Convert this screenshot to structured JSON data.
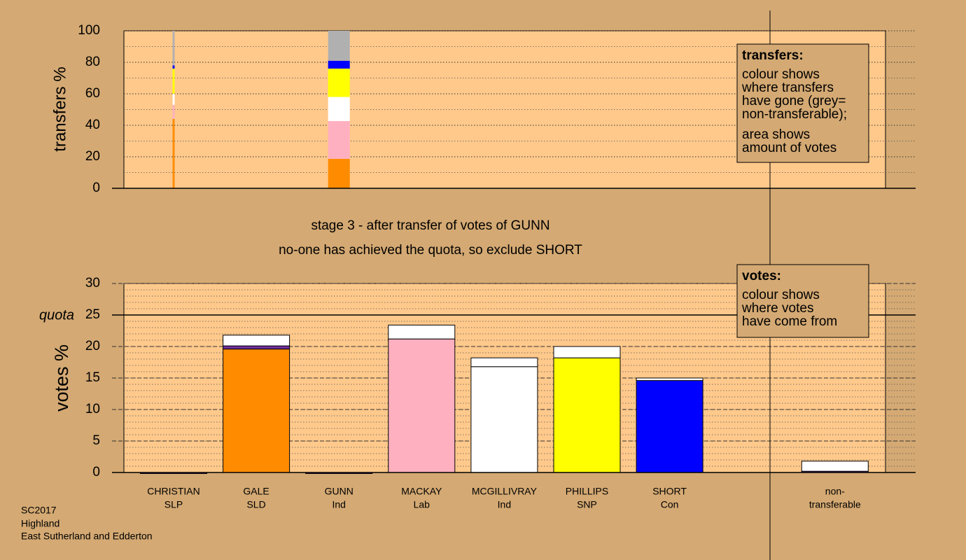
{
  "chart_data": [
    {
      "type": "stacked-bar",
      "y_label": "transfers %",
      "ylim": [
        0,
        100
      ],
      "yticks": [
        0,
        20,
        40,
        60,
        80,
        100
      ],
      "grid": "dotted",
      "minor_grid_step": 10,
      "stacks": [
        {
          "width": 0.3,
          "segments": [
            {
              "value": 44,
              "color": "#ff8c00"
            },
            {
              "value": 9,
              "color": "#ffb0c0"
            },
            {
              "value": 7,
              "color": "#ffffff"
            },
            {
              "value": 16,
              "color": "#ffff00"
            },
            {
              "value": 2,
              "color": "#0000ff"
            },
            {
              "value": 22,
              "color": "#b0b0b0"
            }
          ]
        },
        null,
        {
          "width": 3.2,
          "segments": [
            {
              "value": 18.7,
              "color": "#ff8c00"
            },
            {
              "value": 24,
              "color": "#ffb0c0"
            },
            {
              "value": 15.3,
              "color": "#ffffff"
            },
            {
              "value": 18,
              "color": "#ffff00"
            },
            {
              "value": 5,
              "color": "#0000ff"
            },
            {
              "value": 19,
              "color": "#b0b0b0"
            }
          ]
        },
        null,
        null,
        null,
        null,
        null,
        null
      ]
    },
    {
      "type": "stacked-bar",
      "title": "stage 3 - after transfer of votes of GUNN",
      "subtitle": "no-one has achieved the quota, so exclude SHORT",
      "y_label": "votes %",
      "ylim": [
        0,
        30
      ],
      "yticks": [
        0,
        5,
        10,
        15,
        20,
        25,
        30
      ],
      "grid": "dashed",
      "minor_grid_step": 1,
      "quota": {
        "label": "quota",
        "value": 25
      },
      "categories": [
        [
          "CHRISTIAN",
          "SLP"
        ],
        [
          "GALE",
          "SLD"
        ],
        [
          "GUNN",
          "Ind"
        ],
        [
          "MACKAY",
          "Lab"
        ],
        [
          "MCGILLIVRAY",
          "Ind"
        ],
        [
          "PHILLIPS",
          "SNP"
        ],
        [
          "SHORT",
          "Con"
        ],
        null,
        [
          "non-",
          "transferable"
        ]
      ],
      "stacks": [
        {
          "segments": [
            {
              "value": 0,
              "color": "#7030a0"
            }
          ]
        },
        {
          "segments": [
            {
              "value": 19.6,
              "color": "#ff8c00"
            },
            {
              "value": 0.5,
              "color": "#7030a0"
            },
            {
              "value": 1.7,
              "color": "#ffffff"
            }
          ]
        },
        {
          "segments": [
            {
              "value": 0,
              "color": "#7030a0"
            }
          ]
        },
        {
          "segments": [
            {
              "value": 21.2,
              "color": "#ffb0c0"
            },
            {
              "value": 2.2,
              "color": "#ffffff"
            }
          ]
        },
        {
          "segments": [
            {
              "value": 16.8,
              "color": "#ffffff"
            },
            {
              "value": 1.4,
              "color": "#ffffff"
            }
          ]
        },
        {
          "segments": [
            {
              "value": 18.2,
              "color": "#ffff00"
            },
            {
              "value": 1.8,
              "color": "#ffffff"
            }
          ]
        },
        {
          "segments": [
            {
              "value": 14.6,
              "color": "#0000ff"
            },
            {
              "value": 0.4,
              "color": "#ffffff"
            }
          ]
        },
        null,
        {
          "segments": [
            {
              "value": 0.2,
              "color": "#7030a0"
            },
            {
              "value": 1.6,
              "color": "#ffffff"
            }
          ]
        }
      ]
    }
  ],
  "legends": [
    {
      "title": "transfers:",
      "paragraphs": [
        [
          "colour shows",
          "where transfers",
          "have gone (grey=",
          "non-transferable);"
        ],
        [
          "area shows",
          "amount of votes"
        ]
      ]
    },
    {
      "title": "votes:",
      "paragraphs": [
        [
          "colour shows",
          "where votes",
          "have come from"
        ]
      ]
    }
  ],
  "footer": [
    "SC2017",
    "Highland",
    "East Sutherland and Edderton"
  ]
}
